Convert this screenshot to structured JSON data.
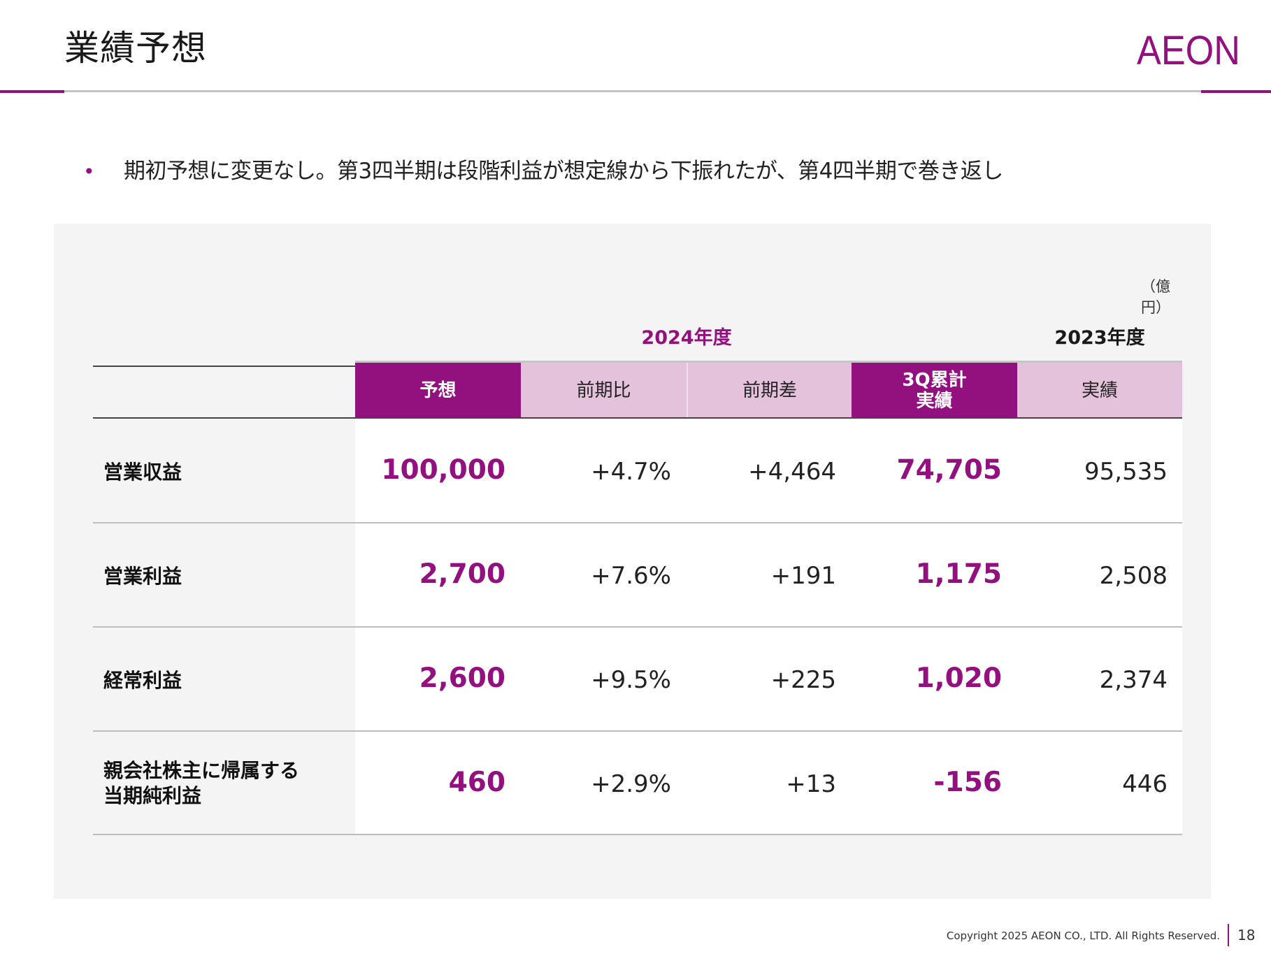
{
  "header": {
    "title": "業績予想",
    "logo_text": "AEON"
  },
  "bullet": "期初予想に変更なし。第3四半期は段階利益が想定線から下振れたが、第4四半期で巻き返し",
  "table": {
    "unit": "（億円）",
    "fy_current": "2024年度",
    "fy_prior": "2023年度",
    "columns": [
      {
        "lines": [
          "予想"
        ]
      },
      {
        "lines": [
          "前期比"
        ]
      },
      {
        "lines": [
          "前期差"
        ]
      },
      {
        "lines": [
          "3Q累計",
          "実績"
        ]
      },
      {
        "lines": [
          "実績"
        ]
      }
    ],
    "rows": [
      {
        "label": [
          "営業収益"
        ],
        "values": [
          "100,000",
          "+4.7%",
          "+4,464",
          "74,705",
          "95,535"
        ]
      },
      {
        "label": [
          "営業利益"
        ],
        "values": [
          "2,700",
          "+7.6%",
          "+191",
          "1,175",
          "2,508"
        ]
      },
      {
        "label": [
          "経常利益"
        ],
        "values": [
          "2,600",
          "+9.5%",
          "+225",
          "1,020",
          "2,374"
        ]
      },
      {
        "label": [
          "親会社株主に帰属する",
          "当期純利益"
        ],
        "values": [
          "460",
          "+2.9%",
          "+13",
          "-156",
          "446"
        ]
      }
    ]
  },
  "footer": {
    "copyright": "Copyright 2025 AEON CO., LTD. All Rights Reserved.",
    "page": "18"
  },
  "colors": {
    "accent": "#92117f",
    "header_light": "#e4c2dc",
    "panel_bg": "#f4f4f4"
  }
}
